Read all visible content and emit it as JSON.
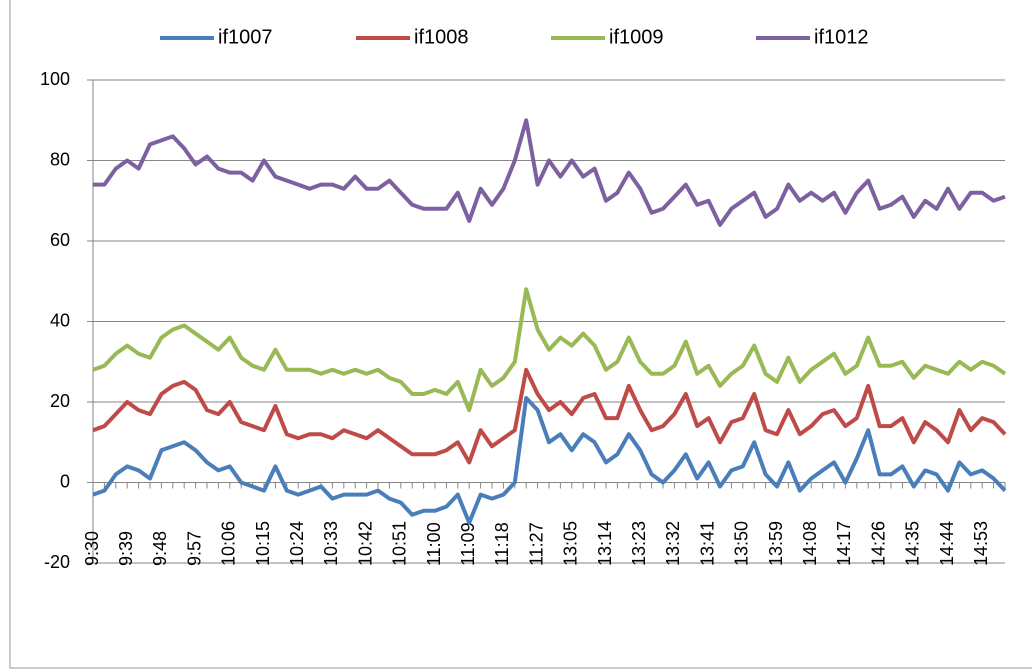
{
  "chart_data": {
    "type": "line",
    "categories": [
      "9:30",
      null,
      null,
      "9:39",
      null,
      null,
      "9:48",
      null,
      null,
      "9:57",
      null,
      null,
      "10:06",
      null,
      null,
      "10:15",
      null,
      null,
      "10:24",
      null,
      null,
      "10:33",
      null,
      null,
      "10:42",
      null,
      null,
      "10:51",
      null,
      null,
      "11:00",
      null,
      null,
      "11:09",
      null,
      null,
      "11:18",
      null,
      null,
      "11:27",
      null,
      null,
      "13:05",
      null,
      null,
      "13:14",
      null,
      null,
      "13:23",
      null,
      null,
      "13:32",
      null,
      null,
      "13:41",
      null,
      null,
      "13:50",
      null,
      null,
      "13:59",
      null,
      null,
      "14:08",
      null,
      null,
      "14:17",
      null,
      null,
      "14:26",
      null,
      null,
      "14:35",
      null,
      null,
      "14:44",
      null,
      null,
      "14:53",
      null,
      null
    ],
    "series": [
      {
        "name": "if1007",
        "color": "#4a7ebb",
        "values": [
          -3,
          -2,
          2,
          4,
          3,
          1,
          8,
          9,
          10,
          8,
          5,
          3,
          4,
          0,
          -1,
          -2,
          4,
          -2,
          -3,
          -2,
          -1,
          -4,
          -3,
          -3,
          -3,
          -2,
          -4,
          -5,
          -8,
          -7,
          -7,
          -6,
          -3,
          -10,
          -3,
          -4,
          -3,
          0,
          21,
          18,
          10,
          12,
          8,
          12,
          10,
          5,
          7,
          12,
          8,
          2,
          0,
          3,
          7,
          1,
          5,
          -1,
          3,
          4,
          10,
          2,
          -1,
          5,
          -2,
          1,
          3,
          5,
          0,
          6,
          13,
          2,
          2,
          4,
          -1,
          3,
          2,
          -2,
          5,
          2,
          3,
          1,
          -2
        ]
      },
      {
        "name": "if1008",
        "color": "#be4b48",
        "values": [
          13,
          14,
          17,
          20,
          18,
          17,
          22,
          24,
          25,
          23,
          18,
          17,
          20,
          15,
          14,
          13,
          19,
          12,
          11,
          12,
          12,
          11,
          13,
          12,
          11,
          13,
          11,
          9,
          7,
          7,
          7,
          8,
          10,
          5,
          13,
          9,
          11,
          13,
          28,
          22,
          18,
          20,
          17,
          21,
          22,
          16,
          16,
          24,
          18,
          13,
          14,
          17,
          22,
          14,
          16,
          10,
          15,
          16,
          22,
          13,
          12,
          18,
          12,
          14,
          17,
          18,
          14,
          16,
          24,
          14,
          14,
          16,
          10,
          15,
          13,
          10,
          18,
          13,
          16,
          15,
          12
        ]
      },
      {
        "name": "if1009",
        "color": "#98b954",
        "values": [
          28,
          29,
          32,
          34,
          32,
          31,
          36,
          38,
          39,
          37,
          35,
          33,
          36,
          31,
          29,
          28,
          33,
          28,
          28,
          28,
          27,
          28,
          27,
          28,
          27,
          28,
          26,
          25,
          22,
          22,
          23,
          22,
          25,
          18,
          28,
          24,
          26,
          30,
          48,
          38,
          33,
          36,
          34,
          37,
          34,
          28,
          30,
          36,
          30,
          27,
          27,
          29,
          35,
          27,
          29,
          24,
          27,
          29,
          34,
          27,
          25,
          31,
          25,
          28,
          30,
          32,
          27,
          29,
          36,
          29,
          29,
          30,
          26,
          29,
          28,
          27,
          30,
          28,
          30,
          29,
          27
        ]
      },
      {
        "name": "if1012",
        "color": "#7d60a0",
        "values": [
          74,
          74,
          78,
          80,
          78,
          84,
          85,
          86,
          83,
          79,
          81,
          78,
          77,
          77,
          75,
          80,
          76,
          75,
          74,
          73,
          74,
          74,
          73,
          76,
          73,
          73,
          75,
          72,
          69,
          68,
          68,
          68,
          72,
          65,
          73,
          69,
          73,
          80,
          90,
          74,
          80,
          76,
          80,
          76,
          78,
          70,
          72,
          77,
          73,
          67,
          68,
          71,
          74,
          69,
          70,
          64,
          68,
          70,
          72,
          66,
          68,
          74,
          70,
          72,
          70,
          72,
          67,
          72,
          75,
          68,
          69,
          71,
          66,
          70,
          68,
          73,
          68,
          72,
          72,
          70,
          71
        ]
      }
    ],
    "ylim": [
      -20,
      100
    ],
    "yticks": [
      -20,
      0,
      20,
      40,
      60,
      80,
      100
    ],
    "grid": true,
    "legend": "top"
  }
}
